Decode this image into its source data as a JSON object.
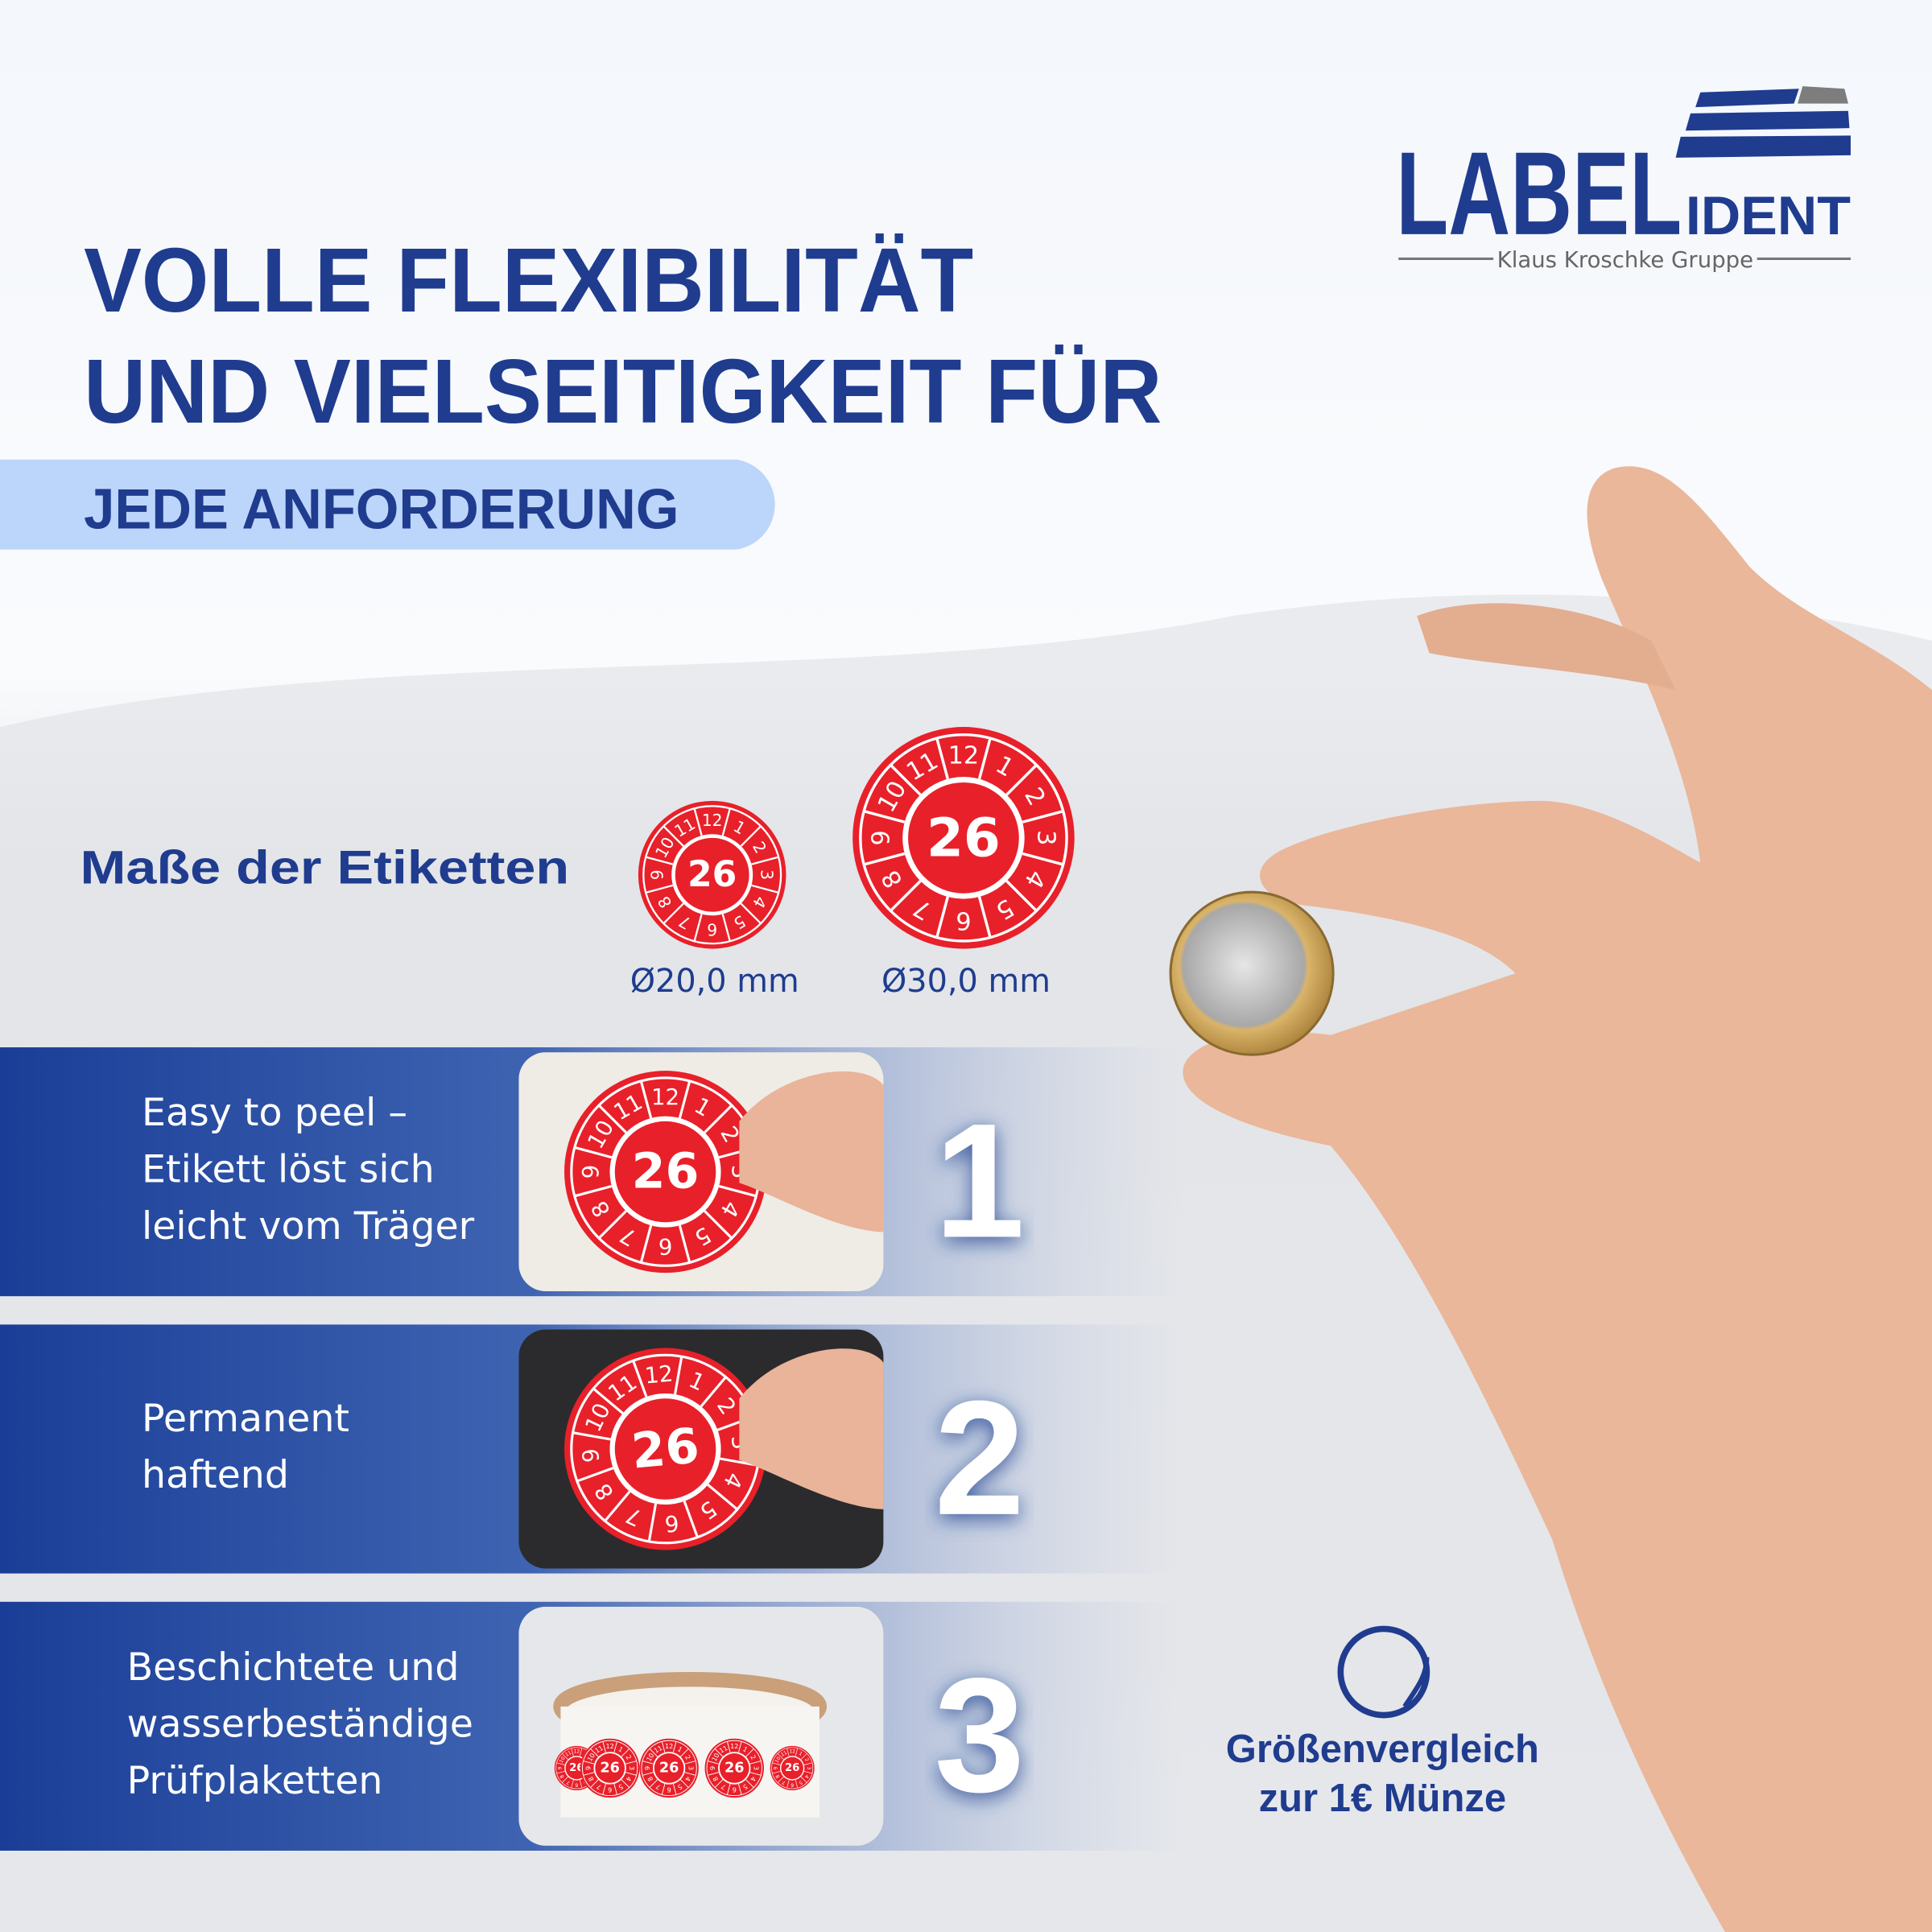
{
  "logo": {
    "brand": "LABEL",
    "brand_suffix": "IDENT",
    "group": "Klaus Kroschke Gruppe"
  },
  "headline": {
    "lines": [
      "VOLLE FLEXIBILITÄT",
      "UND VIELSEITIGKEIT FÜR"
    ],
    "highlight": "JEDE ANFORDERUNG"
  },
  "sizes": {
    "title": "Maße der Etiketten",
    "items": [
      "Ø20,0 mm",
      "Ø30,0 mm"
    ]
  },
  "sticker": {
    "year": "26",
    "months": [
      "1",
      "2",
      "3",
      "4",
      "5",
      "6",
      "7",
      "8",
      "9",
      "10",
      "11",
      "12"
    ]
  },
  "features": [
    {
      "lines": [
        "Easy to peel –",
        "Etikett löst sich",
        "leicht vom Träger"
      ],
      "number": "1"
    },
    {
      "lines": [
        "Permanent",
        "haftend"
      ],
      "number": "2"
    },
    {
      "lines": [
        "Beschichtete und",
        "wasserbeständige",
        "Prüfplaketten"
      ],
      "number": "3"
    }
  ],
  "comparison": {
    "lines": [
      "Größenvergleich",
      "zur 1€ Münze"
    ]
  }
}
